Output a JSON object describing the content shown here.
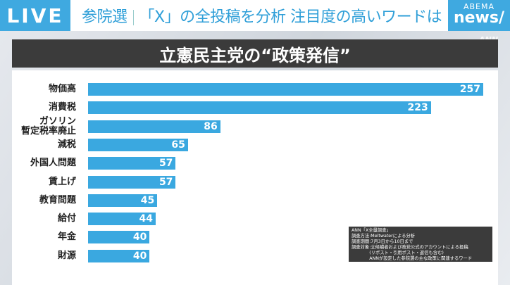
{
  "header": {
    "live": "LIVE",
    "headline_a": "参院選",
    "headline_b": "「X」の全投稿を分析 注目度の高いワードは",
    "logo_top": "ABEMA",
    "logo_bottom": "news/",
    "watermark": "ANN"
  },
  "chart_data": {
    "type": "bar",
    "orientation": "horizontal",
    "title": "立憲民主党の“政策発信”",
    "categories": [
      "物価高",
      "消費税",
      "ガソリン\n暫定税率廃止",
      "減税",
      "外国人問題",
      "賃上げ",
      "教育問題",
      "給付",
      "年金",
      "財源"
    ],
    "values": [
      257,
      223,
      86,
      65,
      57,
      57,
      45,
      44,
      40,
      40
    ],
    "xlim": [
      0,
      257
    ],
    "bar_color": "#3aa8e0",
    "data_labels": true
  },
  "note": [
    "ANN「X全量調査」",
    "調査方法:Meltwaterによる分析",
    "調査期間:7月3日から10日まで",
    "調査対象:立候補者および政党公式のアカウントによる投稿",
    "　　　　(リポスト・引用ポスト・返信も含む)",
    "　　　　ANNが設定した参院選の主な政策に関連するワード"
  ]
}
